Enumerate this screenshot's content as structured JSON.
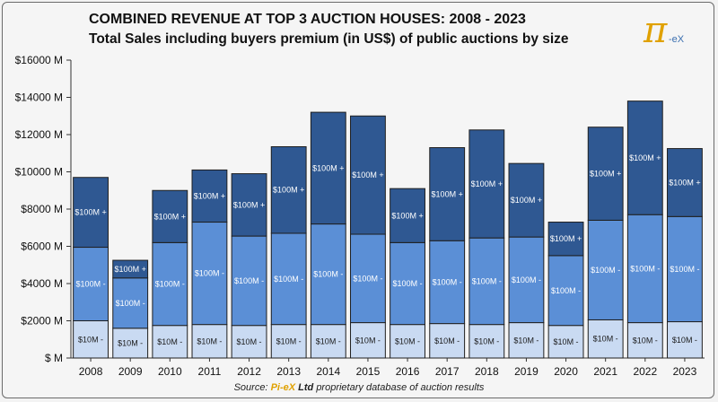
{
  "header": {
    "title": "COMBINED REVENUE AT TOP 3 AUCTION HOUSES: 2008 - 2023",
    "subtitle": "Total Sales including buyers premium (in US$) of public auctions by size"
  },
  "logo": {
    "symbol": "π",
    "suffix": "-eX"
  },
  "source": {
    "prefix": "Source:",
    "brand": "Pi-eX",
    "ltd": "Ltd",
    "rest": "proprietary database of auction results"
  },
  "colors": {
    "small": "#c9daf2",
    "mid": "#5b8fd6",
    "large": "#2f5892",
    "outline": "#1f1f1f",
    "logo_gold": "#e0a100"
  },
  "chart_data": {
    "type": "bar",
    "stacked": true,
    "categories": [
      "2008",
      "2009",
      "2010",
      "2011",
      "2012",
      "2013",
      "2014",
      "2015",
      "2016",
      "2017",
      "2018",
      "2019",
      "2020",
      "2021",
      "2022",
      "2023"
    ],
    "series": [
      {
        "name": "$10M -",
        "values": [
          2000,
          1600,
          1750,
          1800,
          1750,
          1800,
          1800,
          1900,
          1800,
          1850,
          1800,
          1900,
          1750,
          2050,
          1900,
          1950
        ]
      },
      {
        "name": "$100M -",
        "values": [
          3950,
          2700,
          4450,
          5500,
          4800,
          4900,
          5400,
          4750,
          4400,
          4450,
          4650,
          4600,
          3750,
          5350,
          5800,
          5650
        ]
      },
      {
        "name": "$100M +",
        "values": [
          3750,
          950,
          2800,
          2800,
          3350,
          4650,
          6000,
          6350,
          2900,
          5000,
          5800,
          3950,
          1800,
          5000,
          6100,
          3650
        ]
      }
    ],
    "segment_labels": [
      "$10M -",
      "$100M -",
      "$100M +"
    ],
    "ylim": [
      0,
      16000
    ],
    "yticks": [
      0,
      2000,
      4000,
      6000,
      8000,
      10000,
      12000,
      14000,
      16000
    ],
    "ytick_labels": [
      "$ M",
      "$2000 M",
      "$4000 M",
      "$6000 M",
      "$8000 M",
      "$10000 M",
      "$12000 M",
      "$14000 M",
      "$16000 M"
    ],
    "grid": false,
    "legend": "none"
  }
}
